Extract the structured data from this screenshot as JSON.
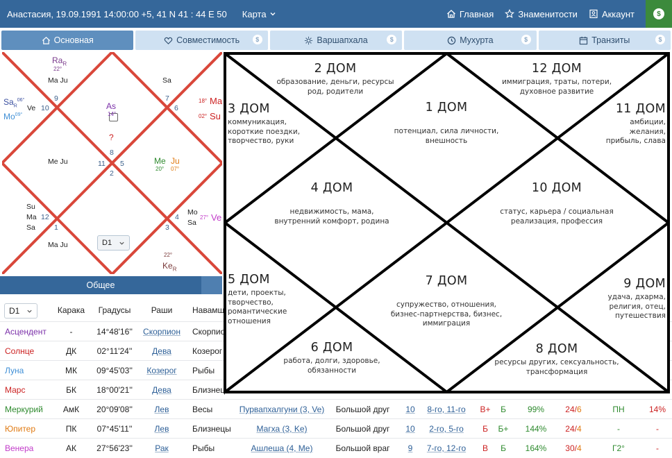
{
  "header": {
    "title": "Анастасия, 19.09.1991 14:00:00 +5, 41 N 41 : 44 E 50",
    "map": "Карта",
    "nav": [
      {
        "label": "Главная",
        "icon": "home-icon"
      },
      {
        "label": "Знаменитости",
        "icon": "star-icon"
      },
      {
        "label": "Аккаунт",
        "icon": "account-icon"
      }
    ],
    "coin": "$"
  },
  "tabs": [
    {
      "label": "Основная",
      "icon": "home-icon",
      "paid": false
    },
    {
      "label": "Совместимость",
      "icon": "heart-icon",
      "paid": true
    },
    {
      "label": "Варшапхала",
      "icon": "sun-icon",
      "paid": true
    },
    {
      "label": "Мухурта",
      "icon": "clock-icon",
      "paid": true
    },
    {
      "label": "Транзиты",
      "icon": "calendar-icon",
      "paid": true
    }
  ],
  "small_chart": {
    "ra": "Ra",
    "ra_r": "R",
    "ra_deg": "22°",
    "mj_top": "Ma Ju",
    "sa_top": "Sa",
    "sa": "Sa",
    "sa_r": "R",
    "sa_deg": "06°",
    "ve": "Ve",
    "mo": "Mo",
    "mo_deg": "09°",
    "as": "As",
    "as_deg": "14°",
    "q": "?",
    "ma_deg": "18°",
    "ma": "Ma",
    "su_deg": "02°",
    "su": "Su",
    "mj_left": "Me Ju",
    "me": "Me",
    "me_deg": "20°",
    "ju": "Ju",
    "ju_deg": "07°",
    "su_bl": "Su",
    "ma_bl": "Ma",
    "sa_bl": "Sa",
    "mj_bottom": "Ma Ju",
    "mo_br": "Mo",
    "sa_br": "Sa",
    "ve_deg": "27°",
    "ve_r": "Ve",
    "ke_deg": "22°",
    "ke": "Ke",
    "ke_r": "R",
    "houses": [
      "9",
      "10",
      "7",
      "6",
      "8",
      "11",
      "5",
      "2",
      "12",
      "1",
      "3",
      "4"
    ],
    "select": "D1"
  },
  "general_label": "Общее",
  "table": {
    "select": "D1",
    "headers": [
      "Карака",
      "Градусы",
      "Раши",
      "Навамша"
    ],
    "rows": [
      {
        "name": "Асцендент",
        "color": "#7a2ea8",
        "karaka": "-",
        "deg": "14°48'16''",
        "rashi": "Скорпион",
        "navamsha": "Скорпион"
      },
      {
        "name": "Солнце",
        "color": "#cc2222",
        "karaka": "ДК",
        "deg": "02°11'24''",
        "rashi": "Дева",
        "navamsha": "Козерог"
      },
      {
        "name": "Луна",
        "color": "#3f8fd6",
        "karaka": "МК",
        "deg": "09°45'03''",
        "rashi": "Козерог",
        "navamsha": "Рыбы"
      },
      {
        "name": "Марс",
        "color": "#cc2222",
        "karaka": "БК",
        "deg": "18°00'21''",
        "rashi": "Дева",
        "navamsha": "Близнецы"
      },
      {
        "name": "Меркурий",
        "color": "#2e8a2e",
        "karaka": "АмК",
        "deg": "20°09'08''",
        "rashi": "Лев",
        "navamsha": "Весы",
        "nakshatra": "Пурвапхалгуни (3, Ve)",
        "rel": "Большой друг",
        "house": "10",
        "lord": "8-го, 11-го",
        "s1": "В+",
        "s2": "Б",
        "pct": "99%",
        "f1": "24",
        "f2": "6",
        "x": "ПН",
        "p2": "14%"
      },
      {
        "name": "Юпитер",
        "color": "#e07a12",
        "karaka": "ПК",
        "deg": "07°45'11''",
        "rashi": "Лев",
        "navamsha": "Близнецы",
        "nakshatra": "Магха (3, Ke)",
        "rel": "Большой друг",
        "house": "10",
        "lord": "2-го, 5-го",
        "s1": "Б",
        "s2": "Б+",
        "pct": "144%",
        "f1": "24",
        "f2": "4",
        "x": "-",
        "p2": "-"
      },
      {
        "name": "Венера",
        "color": "#c23cc9",
        "karaka": "АК",
        "deg": "27°56'23''",
        "rashi": "Рак",
        "navamsha": "Рыбы",
        "nakshatra": "Ашлеша (4, Me)",
        "rel": "Большой враг",
        "house": "9",
        "lord": "7-го, 12-го",
        "s1": "В",
        "s2": "Б",
        "pct": "164%",
        "f1": "30",
        "f2": "4",
        "x": "Г2°",
        "p2": "-"
      }
    ]
  },
  "big_chart": {
    "houses": [
      {
        "title": "1 ДОМ",
        "desc": [
          "потенциал, сила личности,",
          "внешность"
        ]
      },
      {
        "title": "2 ДОМ",
        "desc": [
          "образование, деньги, ресурсы",
          "род, родители"
        ]
      },
      {
        "title": "3 ДОМ",
        "desc": [
          "коммуникация,",
          "короткие поездки,",
          "творчество, руки"
        ]
      },
      {
        "title": "4 ДОМ",
        "desc": [
          "недвижимость, мама,",
          "внутренний комфорт, родина"
        ]
      },
      {
        "title": "5 ДОМ",
        "desc": [
          "дети, проекты,",
          "творчество,",
          "романтические",
          "отношения"
        ]
      },
      {
        "title": "6 ДОМ",
        "desc": [
          "работа, долги, здоровье,",
          "обязанности"
        ]
      },
      {
        "title": "7 ДОМ",
        "desc": [
          "супружество, отношения,",
          "бизнес-партнерства, бизнес,",
          "иммиграция"
        ]
      },
      {
        "title": "8 ДОМ",
        "desc": [
          "ресурсы других, сексуальность,",
          "трансформация"
        ]
      },
      {
        "title": "9 ДОМ",
        "desc": [
          "удача, дхарма,",
          "религия, отец,",
          "путешествия"
        ]
      },
      {
        "title": "10 ДОМ",
        "desc": [
          "статус, карьера / социальная",
          "реализация, профессия"
        ]
      },
      {
        "title": "11 ДОМ",
        "desc": [
          "амбиции,",
          "желания,",
          "прибыль, слава"
        ]
      },
      {
        "title": "12 ДОМ",
        "desc": [
          "иммиграция, траты, потери,",
          "духовное развитие"
        ]
      }
    ]
  }
}
